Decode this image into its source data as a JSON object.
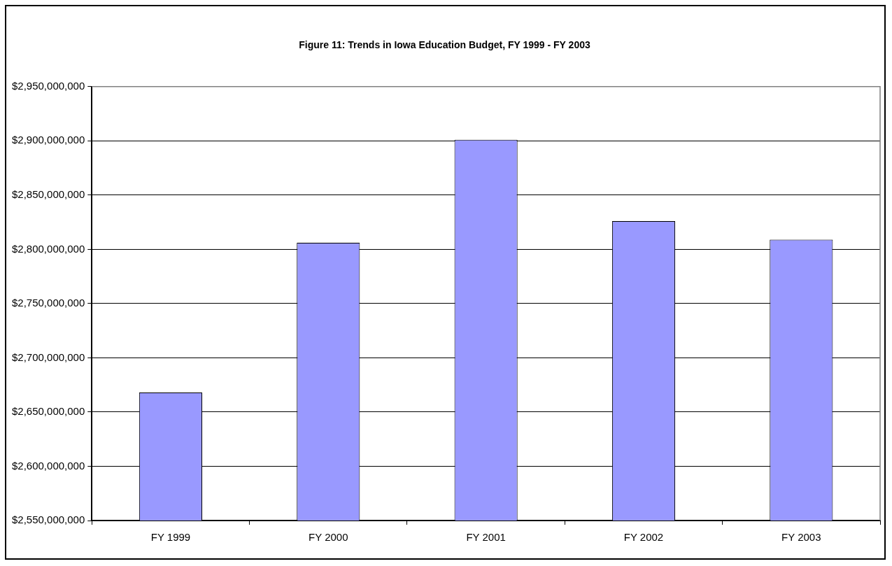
{
  "chart_data": {
    "type": "bar",
    "title": "Figure 11: Trends in Iowa Education Budget, FY 1999 - FY 2003",
    "categories": [
      "FY 1999",
      "FY 2000",
      "FY 2001",
      "FY 2002",
      "FY 2003"
    ],
    "values": [
      2668000000,
      2806000000,
      2901000000,
      2826000000,
      2809000000
    ],
    "color": "#9999ff",
    "ylim": [
      2550000000,
      2950000000
    ],
    "yticks": [
      {
        "value": 2550000000,
        "label": "$2,550,000,000"
      },
      {
        "value": 2600000000,
        "label": "$2,600,000,000"
      },
      {
        "value": 2650000000,
        "label": "$2,650,000,000"
      },
      {
        "value": 2700000000,
        "label": "$2,700,000,000"
      },
      {
        "value": 2750000000,
        "label": "$2,750,000,000"
      },
      {
        "value": 2800000000,
        "label": "$2,800,000,000"
      },
      {
        "value": 2850000000,
        "label": "$2,850,000,000"
      },
      {
        "value": 2900000000,
        "label": "$2,900,000,000"
      },
      {
        "value": 2950000000,
        "label": "$2,950,000,000"
      }
    ],
    "grid": "y",
    "legend": false
  }
}
